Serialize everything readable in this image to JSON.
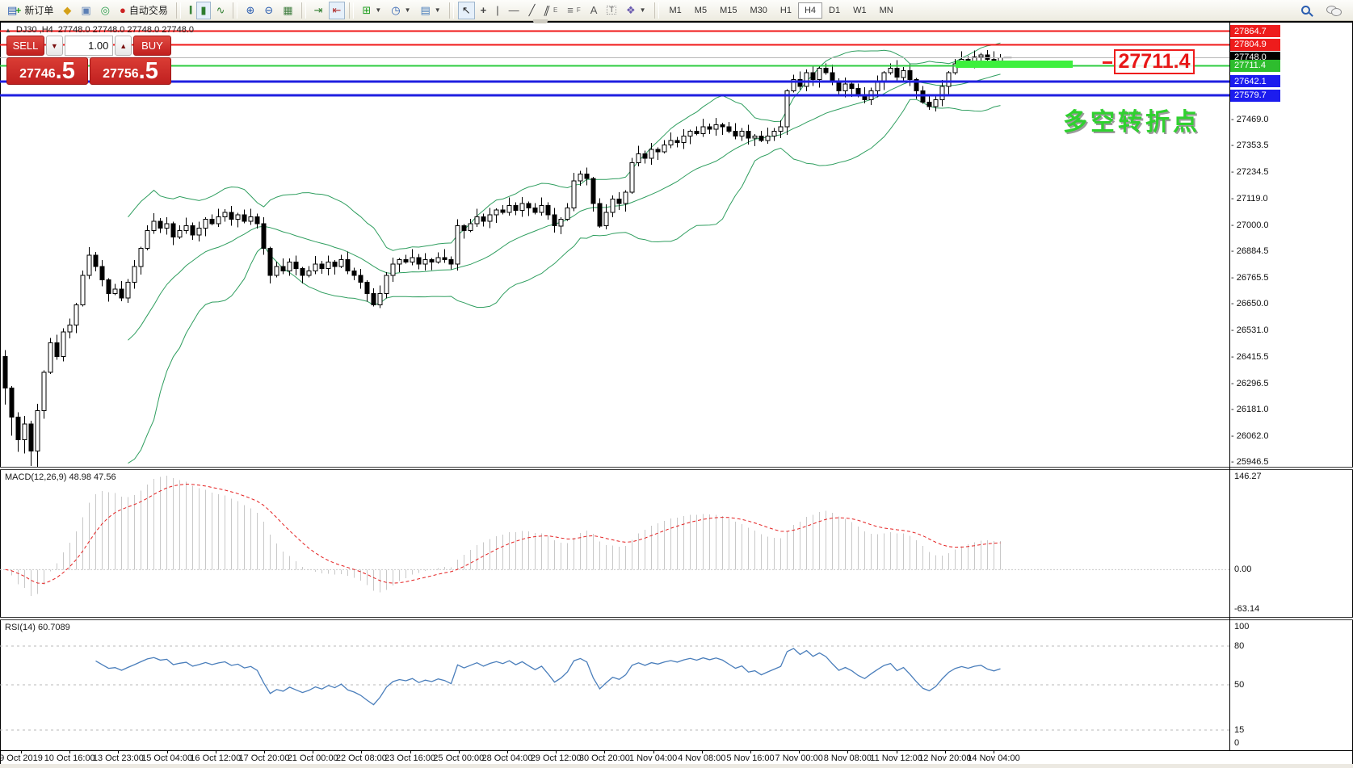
{
  "toolbar": {
    "new_order_label": "新订单",
    "autotrade_label": "自动交易",
    "timeframes": [
      "M1",
      "M5",
      "M15",
      "M30",
      "H1",
      "H4",
      "D1",
      "W1",
      "MN"
    ],
    "active_timeframe": "H4",
    "icons": [
      "new-order-icon",
      "gold-icon",
      "accounts-icon",
      "signal-icon",
      "autotrade-icon",
      "bar-chart-icon",
      "candlestick-chart-icon",
      "line-chart-icon",
      "zoom-in-icon",
      "zoom-out-icon",
      "tile-windows-icon",
      "auto-scroll-icon",
      "chart-shift-icon",
      "indicators-icon",
      "periods-clock-icon",
      "templates-icon",
      "cursor-icon",
      "crosshair-icon",
      "vertical-line-icon",
      "horizontal-line-icon",
      "trendline-icon",
      "channel-icon",
      "fibonacci-icon",
      "text-icon",
      "text-label-icon",
      "arrows-icon",
      "search-icon",
      "chat-icon"
    ]
  },
  "chart": {
    "title_symbol": "DJ30 ,H4",
    "title_ohlc": "27748.0 27748.0 27748.0 27748.0",
    "trade_panel": {
      "sell_label": "SELL",
      "buy_label": "BUY",
      "volume": "1.00",
      "sell_price_main": "27746",
      "sell_price_frac": ".5",
      "buy_price_main": "27756",
      "buy_price_frac": ".5"
    },
    "price_axis_ticks": [
      "27469.0",
      "27353.5",
      "27234.5",
      "27119.0",
      "27000.0",
      "26884.5",
      "26765.5",
      "26650.0",
      "26531.0",
      "26415.5",
      "26296.5",
      "26181.0",
      "26062.0",
      "25946.5"
    ],
    "price_tags": [
      {
        "label": "27864.7",
        "price": 27864.7,
        "bg": "#ee1c1c",
        "fg": "#ffffff"
      },
      {
        "label": "27804.9",
        "price": 27804.9,
        "bg": "#ee1c1c",
        "fg": "#ffffff"
      },
      {
        "label": "27748.0",
        "price": 27748.0,
        "bg": "#000000",
        "fg": "#ffffff"
      },
      {
        "label": "27711.4",
        "price": 27711.4,
        "bg": "#2ebd2e",
        "fg": "#ffffff"
      },
      {
        "label": "27642.1",
        "price": 27642.1,
        "bg": "#1c1cee",
        "fg": "#ffffff"
      },
      {
        "label": "27579.7",
        "price": 27579.7,
        "bg": "#1c1cee",
        "fg": "#ffffff"
      }
    ],
    "hlines": [
      {
        "price": 27864.7,
        "color": "#f01818",
        "w": 2
      },
      {
        "price": 27804.9,
        "color": "#f01818",
        "w": 2
      },
      {
        "price": 27748.0,
        "color": "#b8b8b8",
        "w": 1
      },
      {
        "price": 27711.4,
        "color": "#2ecc40",
        "w": 2
      },
      {
        "price": 27642.1,
        "color": "#1f1fe0",
        "w": 3
      },
      {
        "price": 27579.7,
        "color": "#1f1fe0",
        "w": 3
      }
    ],
    "annotation_callout": "27711.4",
    "annotation_text": "多空转折点"
  },
  "chart_data": {
    "type": "candlestick",
    "symbol": "DJ30",
    "timeframe": "H4",
    "ylim": [
      25930,
      27896
    ],
    "first_open": 26420,
    "closes": [
      26280,
      26150,
      26050,
      26120,
      26000,
      26180,
      26350,
      26480,
      26420,
      26530,
      26560,
      26650,
      26780,
      26870,
      26820,
      26760,
      26700,
      26720,
      26680,
      26750,
      26820,
      26900,
      26980,
      27020,
      26990,
      27010,
      26950,
      26980,
      27000,
      26960,
      26990,
      27030,
      27010,
      27040,
      27060,
      27030,
      27050,
      27020,
      27040,
      27010,
      26900,
      26780,
      26820,
      26800,
      26840,
      26810,
      26780,
      26800,
      26830,
      26810,
      26840,
      26820,
      26850,
      26800,
      26780,
      26750,
      26700,
      26650,
      26700,
      26780,
      26830,
      26850,
      26840,
      26860,
      26830,
      26850,
      26840,
      26860,
      26850,
      26830,
      27000,
      26980,
      27010,
      27040,
      27020,
      27050,
      27070,
      27060,
      27090,
      27070,
      27100,
      27080,
      27060,
      27090,
      27050,
      27000,
      27030,
      27080,
      27200,
      27230,
      27210,
      27100,
      27000,
      27060,
      27120,
      27100,
      27150,
      27280,
      27320,
      27300,
      27340,
      27330,
      27360,
      27380,
      27370,
      27400,
      27420,
      27410,
      27440,
      27430,
      27450,
      27440,
      27420,
      27400,
      27420,
      27390,
      27400,
      27380,
      27400,
      27420,
      27440,
      27600,
      27650,
      27620,
      27680,
      27650,
      27700,
      27680,
      27640,
      27600,
      27630,
      27610,
      27580,
      27560,
      27600,
      27640,
      27680,
      27700,
      27660,
      27690,
      27650,
      27600,
      27550,
      27530,
      27560,
      27620,
      27680,
      27720,
      27740,
      27730,
      27750,
      27760,
      27740,
      27730,
      27748
    ],
    "bollinger": {
      "period": 20,
      "deviation": 2
    },
    "indicator_colors": {
      "bollinger": "#2f9e5f",
      "macd_hist": "#c8c8c8",
      "macd_signal": "#e42020",
      "rsi": "#4a7ebb"
    }
  },
  "macd": {
    "label": "MACD(12,26,9) 48.98 47.56",
    "ticks": [
      {
        "label": "146.27",
        "v": 146.27
      },
      {
        "label": "0.00",
        "v": 0
      },
      {
        "label": "-63.14",
        "v": -63.14
      }
    ],
    "ylim": [
      -75,
      155
    ]
  },
  "rsi": {
    "label": "RSI(14) 60.7089",
    "ticks": [
      {
        "label": "100",
        "v": 100
      },
      {
        "label": "80",
        "v": 80
      },
      {
        "label": "50",
        "v": 50
      },
      {
        "label": "15",
        "v": 15
      },
      {
        "label": "0",
        "v": 0
      }
    ],
    "levels": [
      80,
      50,
      15
    ]
  },
  "time_axis": {
    "labels": [
      "9 Oct 2019",
      "10 Oct 16:00",
      "13 Oct 23:00",
      "15 Oct 04:00",
      "16 Oct 12:00",
      "17 Oct 20:00",
      "21 Oct 00:00",
      "22 Oct 08:00",
      "23 Oct 16:00",
      "25 Oct 00:00",
      "28 Oct 04:00",
      "29 Oct 12:00",
      "30 Oct 20:00",
      "1 Nov 04:00",
      "4 Nov 08:00",
      "5 Nov 16:00",
      "7 Nov 00:00",
      "8 Nov 08:00",
      "11 Nov 12:00",
      "12 Nov 20:00",
      "14 Nov 04:00"
    ]
  }
}
